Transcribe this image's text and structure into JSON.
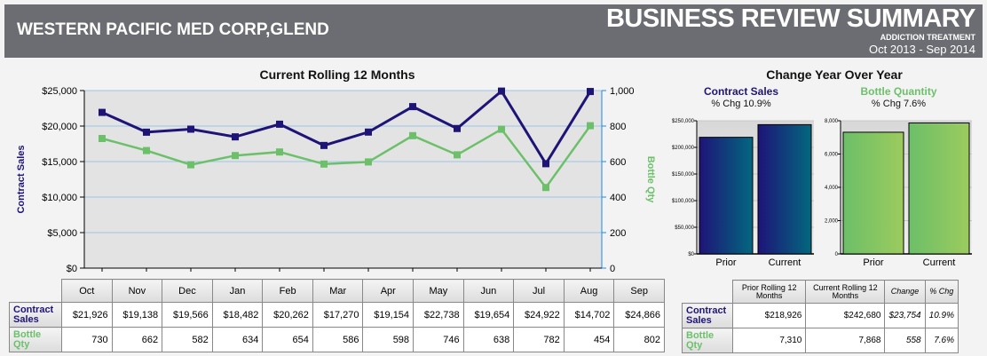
{
  "header": {
    "company": "WESTERN PACIFIC MED CORP,GLEND",
    "title": "BUSINESS REVIEW SUMMARY",
    "subtitle": "ADDICTION TREATMENT",
    "period": "Oct 2013 - Sep 2014"
  },
  "colors": {
    "sales": "#1e1478",
    "qty": "#6cc06a",
    "header_bg": "#6b6d72"
  },
  "chart_data": [
    {
      "type": "line",
      "title": "Current Rolling 12 Months",
      "categories": [
        "Oct",
        "Nov",
        "Dec",
        "Jan",
        "Feb",
        "Mar",
        "Apr",
        "May",
        "Jun",
        "Jul",
        "Aug",
        "Sep"
      ],
      "ylabel": "Contract Sales",
      "y2label": "Bottle Qty",
      "ylim": [
        0,
        25000
      ],
      "y2lim": [
        0,
        1000
      ],
      "yticks": [
        "$0",
        "$5,000",
        "$10,000",
        "$15,000",
        "$20,000",
        "$25,000"
      ],
      "y2ticks": [
        "0",
        "200",
        "400",
        "600",
        "800",
        "1,000"
      ],
      "series": [
        {
          "name": "Contract Sales",
          "axis": "left",
          "values": [
            21926,
            19138,
            19566,
            18482,
            20262,
            17270,
            19154,
            22738,
            19654,
            24922,
            14702,
            24866
          ]
        },
        {
          "name": "Bottle Qty",
          "axis": "right",
          "values": [
            730,
            662,
            582,
            634,
            654,
            586,
            598,
            746,
            638,
            782,
            454,
            802
          ]
        }
      ]
    },
    {
      "type": "bar",
      "title": "Contract Sales",
      "subtitle": "% Chg 10.9%",
      "categories": [
        "Prior",
        "Current"
      ],
      "values": [
        218926,
        242680
      ],
      "ylim": [
        0,
        250000
      ],
      "yticks": [
        "$0",
        "$50,000",
        "$100,000",
        "$150,000",
        "$200,000",
        "$250,000"
      ]
    },
    {
      "type": "bar",
      "title": "Bottle Quantity",
      "subtitle": "% Chg 7.6%",
      "categories": [
        "Prior",
        "Current"
      ],
      "values": [
        7310,
        7868
      ],
      "ylim": [
        0,
        8000
      ],
      "yticks": [
        "0",
        "2,000",
        "4,000",
        "6,000",
        "8,000"
      ]
    }
  ],
  "yoy_title": "Change Year Over Year",
  "monthly_table": {
    "rows": [
      {
        "label": "Contract Sales",
        "values": [
          "$21,926",
          "$19,138",
          "$19,566",
          "$18,482",
          "$20,262",
          "$17,270",
          "$19,154",
          "$22,738",
          "$19,654",
          "$24,922",
          "$14,702",
          "$24,866"
        ]
      },
      {
        "label": "Bottle Qty",
        "values": [
          "730",
          "662",
          "582",
          "634",
          "654",
          "586",
          "598",
          "746",
          "638",
          "782",
          "454",
          "802"
        ]
      }
    ]
  },
  "yoy_table": {
    "headers": [
      "Prior Rolling 12 Months",
      "Current Rolling 12 Months",
      "Change",
      "% Chg"
    ],
    "rows": [
      {
        "label": "Contract Sales",
        "values": [
          "$218,926",
          "$242,680",
          "$23,754",
          "10.9%"
        ]
      },
      {
        "label": "Bottle Qty",
        "values": [
          "7,310",
          "7,868",
          "558",
          "7.6%"
        ]
      }
    ]
  }
}
